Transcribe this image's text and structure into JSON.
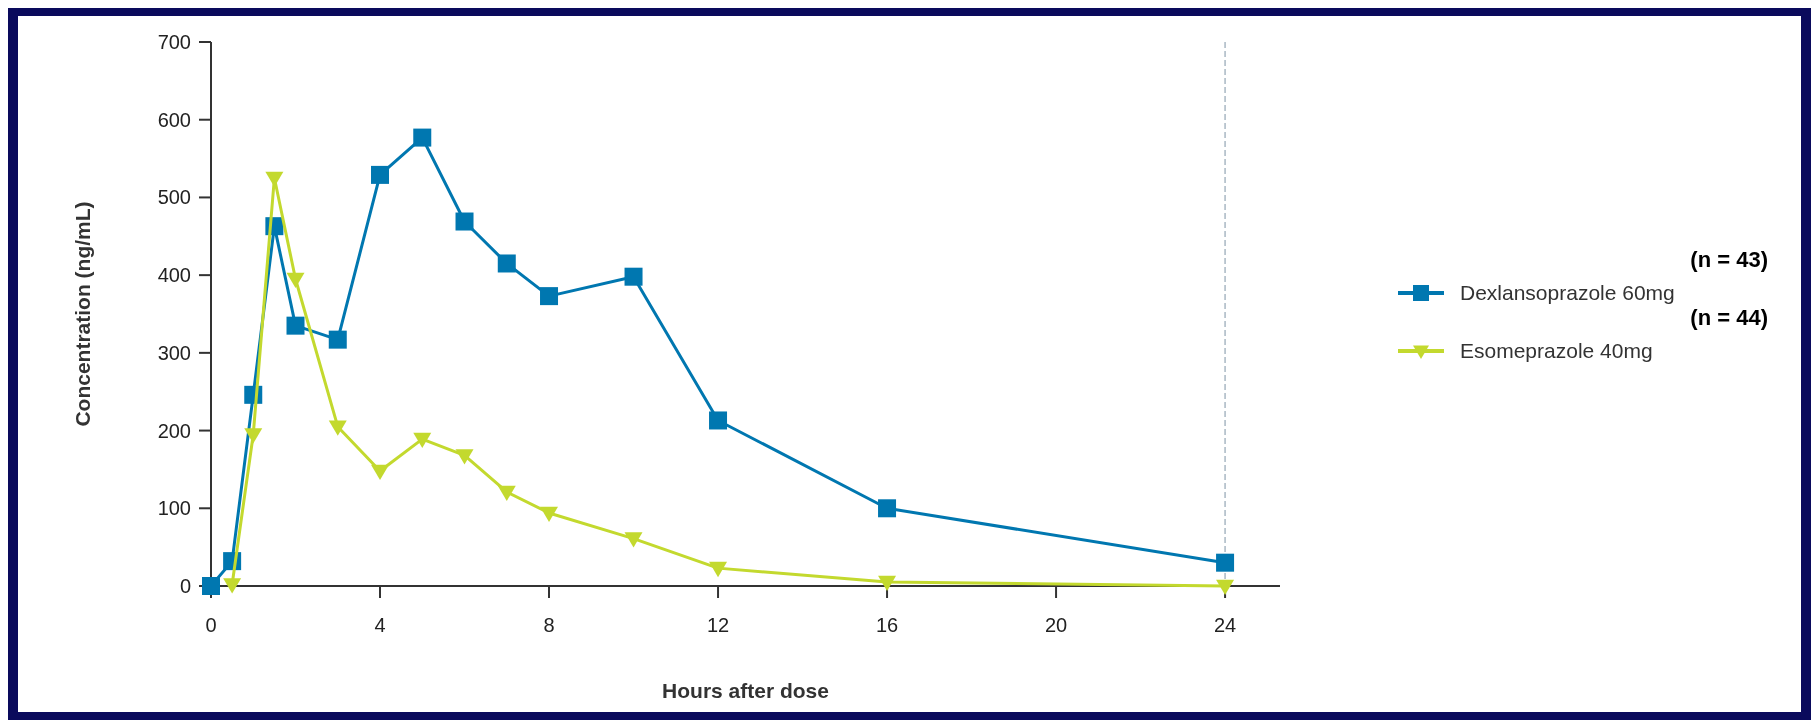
{
  "chart_data": {
    "type": "line",
    "xlabel": "Hours after dose",
    "ylabel": "Concentration (ng/mL)",
    "xlim": [
      0,
      25.3
    ],
    "xticks": [
      0,
      4,
      8,
      12,
      16,
      20,
      24
    ],
    "ylim": [
      0,
      700
    ],
    "yticks": [
      0,
      100,
      200,
      300,
      400,
      500,
      600,
      700
    ],
    "grid": false,
    "legend": "right",
    "series": [
      {
        "name": "Dexlansoprazole 60mg",
        "color": "#0077b0",
        "marker": "square",
        "x": [
          0,
          0.5,
          1,
          1.5,
          2,
          3,
          4,
          5,
          6,
          7,
          8,
          10,
          12,
          16,
          24
        ],
        "values": [
          0,
          32,
          246,
          463,
          335,
          317,
          529,
          577,
          469,
          415,
          373,
          398,
          213,
          100,
          30
        ]
      },
      {
        "name": "Esomeprazole 40mg",
        "color": "#c3d92e",
        "marker": "triangle",
        "x": [
          0.5,
          1,
          1.5,
          2,
          3,
          4,
          5,
          6,
          7,
          8,
          10,
          12,
          16,
          24
        ],
        "values": [
          2,
          195,
          525,
          395,
          205,
          148,
          189,
          168,
          121,
          94,
          61,
          23,
          5,
          0
        ]
      }
    ],
    "ref_lines": [
      {
        "axis": "x",
        "value": 24,
        "color": "#a9b8c4",
        "line_style": "dashed"
      }
    ],
    "annotations": [
      "(n = 43)",
      "(n = 44)"
    ]
  }
}
